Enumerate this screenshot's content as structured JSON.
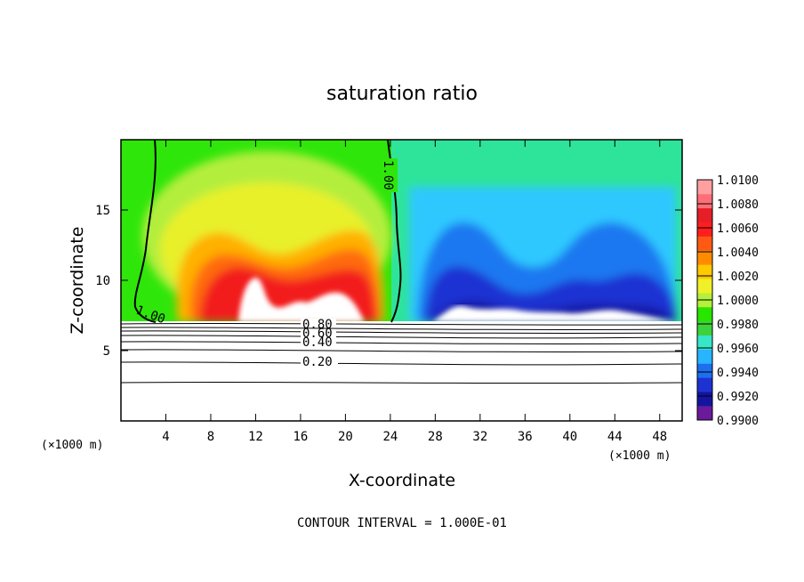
{
  "chart_data": {
    "type": "heatmap",
    "title": "saturation ratio",
    "xlabel": "X-coordinate",
    "ylabel": "Z-coordinate",
    "x_unit": "(×1000 m)",
    "z_unit": "(×1000 m)",
    "xlim": [
      0,
      50
    ],
    "ylim": [
      0,
      20
    ],
    "x_ticks": [
      "4",
      "8",
      "12",
      "16",
      "20",
      "24",
      "28",
      "32",
      "36",
      "40",
      "44",
      "48"
    ],
    "y_ticks": [
      "5",
      "10",
      "15"
    ],
    "colorbar": {
      "levels": [
        "0.9900",
        "0.9920",
        "0.9940",
        "0.9960",
        "0.9980",
        "1.0000",
        "1.0020",
        "1.0040",
        "1.0060",
        "1.0080",
        "1.0100"
      ],
      "colors": [
        "#6a1a9a",
        "#1414a0",
        "#1e32d2",
        "#1e6ef0",
        "#28b4ff",
        "#37e6c8",
        "#3cd23c",
        "#28e600",
        "#b4f03c",
        "#f0f028",
        "#ffc800",
        "#ff8c00",
        "#ff5a14",
        "#ff1e1e",
        "#e61e28",
        "#ff6e78",
        "#ffa0a0"
      ]
    },
    "contour_labels": [
      "1.00",
      "1.00",
      "0.80",
      "0.60",
      "0.40",
      "0.20"
    ],
    "contour_interval_text": "CONTOUR INTERVAL = 1.000E-01"
  }
}
